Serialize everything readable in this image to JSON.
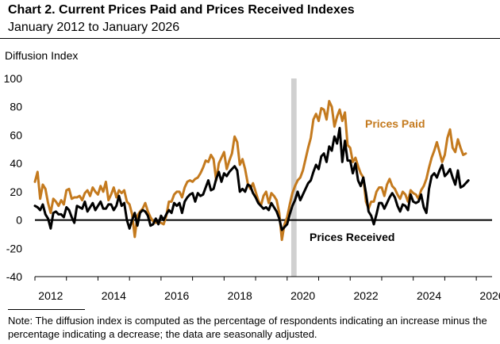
{
  "title": "Chart 2. Current Prices Paid and Prices Received Indexes",
  "subtitle": "January 2012 to January 2026",
  "note": "Note: The diffusion index is computed as the percentage of respondents indicating an increase minus the percentage indicating a decrease; the data are seasonally adjusted.",
  "colors": {
    "prices_paid": "#c47a1e",
    "prices_received": "#000000",
    "recession_band": "#d0d0d0",
    "zero_line": "#000000"
  },
  "chart_data": {
    "type": "line",
    "title": "Chart 2. Current Prices Paid and Prices Received Indexes",
    "subtitle": "January 2012 to January 2026",
    "ylabel": "Diffusion Index",
    "xlabel": "",
    "ylim": [
      -40,
      100
    ],
    "xlim": [
      2012.0,
      2026.5
    ],
    "yticks": [
      100,
      80,
      60,
      40,
      20,
      0,
      -20,
      -40
    ],
    "xticks": [
      2012,
      2014,
      2016,
      2018,
      2020,
      2022,
      2024,
      2026
    ],
    "xtick_labels": [
      "2012",
      "2014",
      "2016",
      "2018",
      "2020",
      "2022",
      "2024",
      "2026"
    ],
    "shaded_periods": [
      {
        "start": 2020.13,
        "end": 2020.3
      }
    ],
    "series": [
      {
        "name": "Prices Paid",
        "label": "Prices Paid",
        "color": "#c47a1e",
        "start": 2012.0,
        "step": 0.0833333,
        "values": [
          27,
          34,
          15,
          25,
          22,
          12,
          5,
          15,
          13,
          10,
          14,
          11,
          21,
          22,
          15,
          16,
          16,
          17,
          14,
          19,
          21,
          17,
          23,
          20,
          18,
          24,
          20,
          27,
          14,
          18,
          23,
          16,
          21,
          19,
          21,
          13,
          11,
          4,
          -12,
          3,
          6,
          8,
          12,
          6,
          2,
          -1,
          -2,
          -1,
          -2,
          -3,
          3,
          13,
          13,
          18,
          20,
          20,
          16,
          23,
          27,
          28,
          27,
          29,
          30,
          33,
          37,
          42,
          41,
          46,
          43,
          28,
          40,
          44,
          48,
          36,
          42,
          47,
          59,
          55,
          39,
          43,
          36,
          26,
          22,
          26,
          20,
          14,
          10,
          17,
          20,
          12,
          19,
          17,
          14,
          5,
          -14,
          -3,
          2,
          11,
          19,
          24,
          28,
          30,
          35,
          43,
          51,
          58,
          71,
          75,
          70,
          79,
          78,
          71,
          84,
          80,
          66,
          73,
          78,
          70,
          76,
          53,
          51,
          41,
          44,
          38,
          33,
          30,
          13,
          8,
          13,
          13,
          20,
          23,
          23,
          17,
          25,
          29,
          24,
          22,
          18,
          15,
          20,
          18,
          13,
          21,
          19,
          18,
          15,
          21,
          24,
          29,
          37,
          44,
          49,
          55,
          48,
          41,
          46,
          58,
          64,
          51,
          48,
          57,
          51,
          46,
          47
        ]
      },
      {
        "name": "Prices Received",
        "label": "Prices Received",
        "color": "#000000",
        "start": 2012.0,
        "step": 0.0833333,
        "values": [
          10,
          9,
          7,
          11,
          4,
          1,
          -6,
          5,
          6,
          4,
          4,
          2,
          9,
          7,
          2,
          -2,
          10,
          9,
          8,
          13,
          6,
          9,
          12,
          7,
          10,
          13,
          8,
          8,
          11,
          11,
          7,
          10,
          17,
          10,
          12,
          0,
          -6,
          0,
          5,
          -4,
          5,
          7,
          6,
          3,
          -4,
          -3,
          1,
          -3,
          3,
          0,
          4,
          7,
          5,
          12,
          10,
          12,
          5,
          13,
          16,
          18,
          19,
          13,
          19,
          17,
          18,
          23,
          28,
          21,
          22,
          29,
          34,
          27,
          33,
          31,
          34,
          36,
          38,
          35,
          20,
          22,
          20,
          25,
          24,
          19,
          16,
          12,
          10,
          8,
          9,
          7,
          12,
          9,
          6,
          1,
          -7,
          -5,
          -3,
          4,
          10,
          14,
          20,
          14,
          18,
          22,
          26,
          28,
          34,
          39,
          36,
          45,
          47,
          41,
          52,
          49,
          59,
          54,
          65,
          41,
          56,
          42,
          42,
          33,
          40,
          28,
          24,
          30,
          19,
          6,
          3,
          -3,
          4,
          12,
          12,
          8,
          12,
          16,
          19,
          16,
          10,
          6,
          11,
          10,
          7,
          18,
          13,
          12,
          13,
          18,
          9,
          5,
          22,
          31,
          33,
          30,
          35,
          39,
          31,
          33,
          36,
          30,
          25,
          35,
          23,
          24,
          26,
          28
        ]
      }
    ],
    "annotations": [
      {
        "text": "Prices Paid",
        "series": "Prices Paid"
      },
      {
        "text": "Prices Received",
        "series": "Prices Received"
      }
    ]
  }
}
